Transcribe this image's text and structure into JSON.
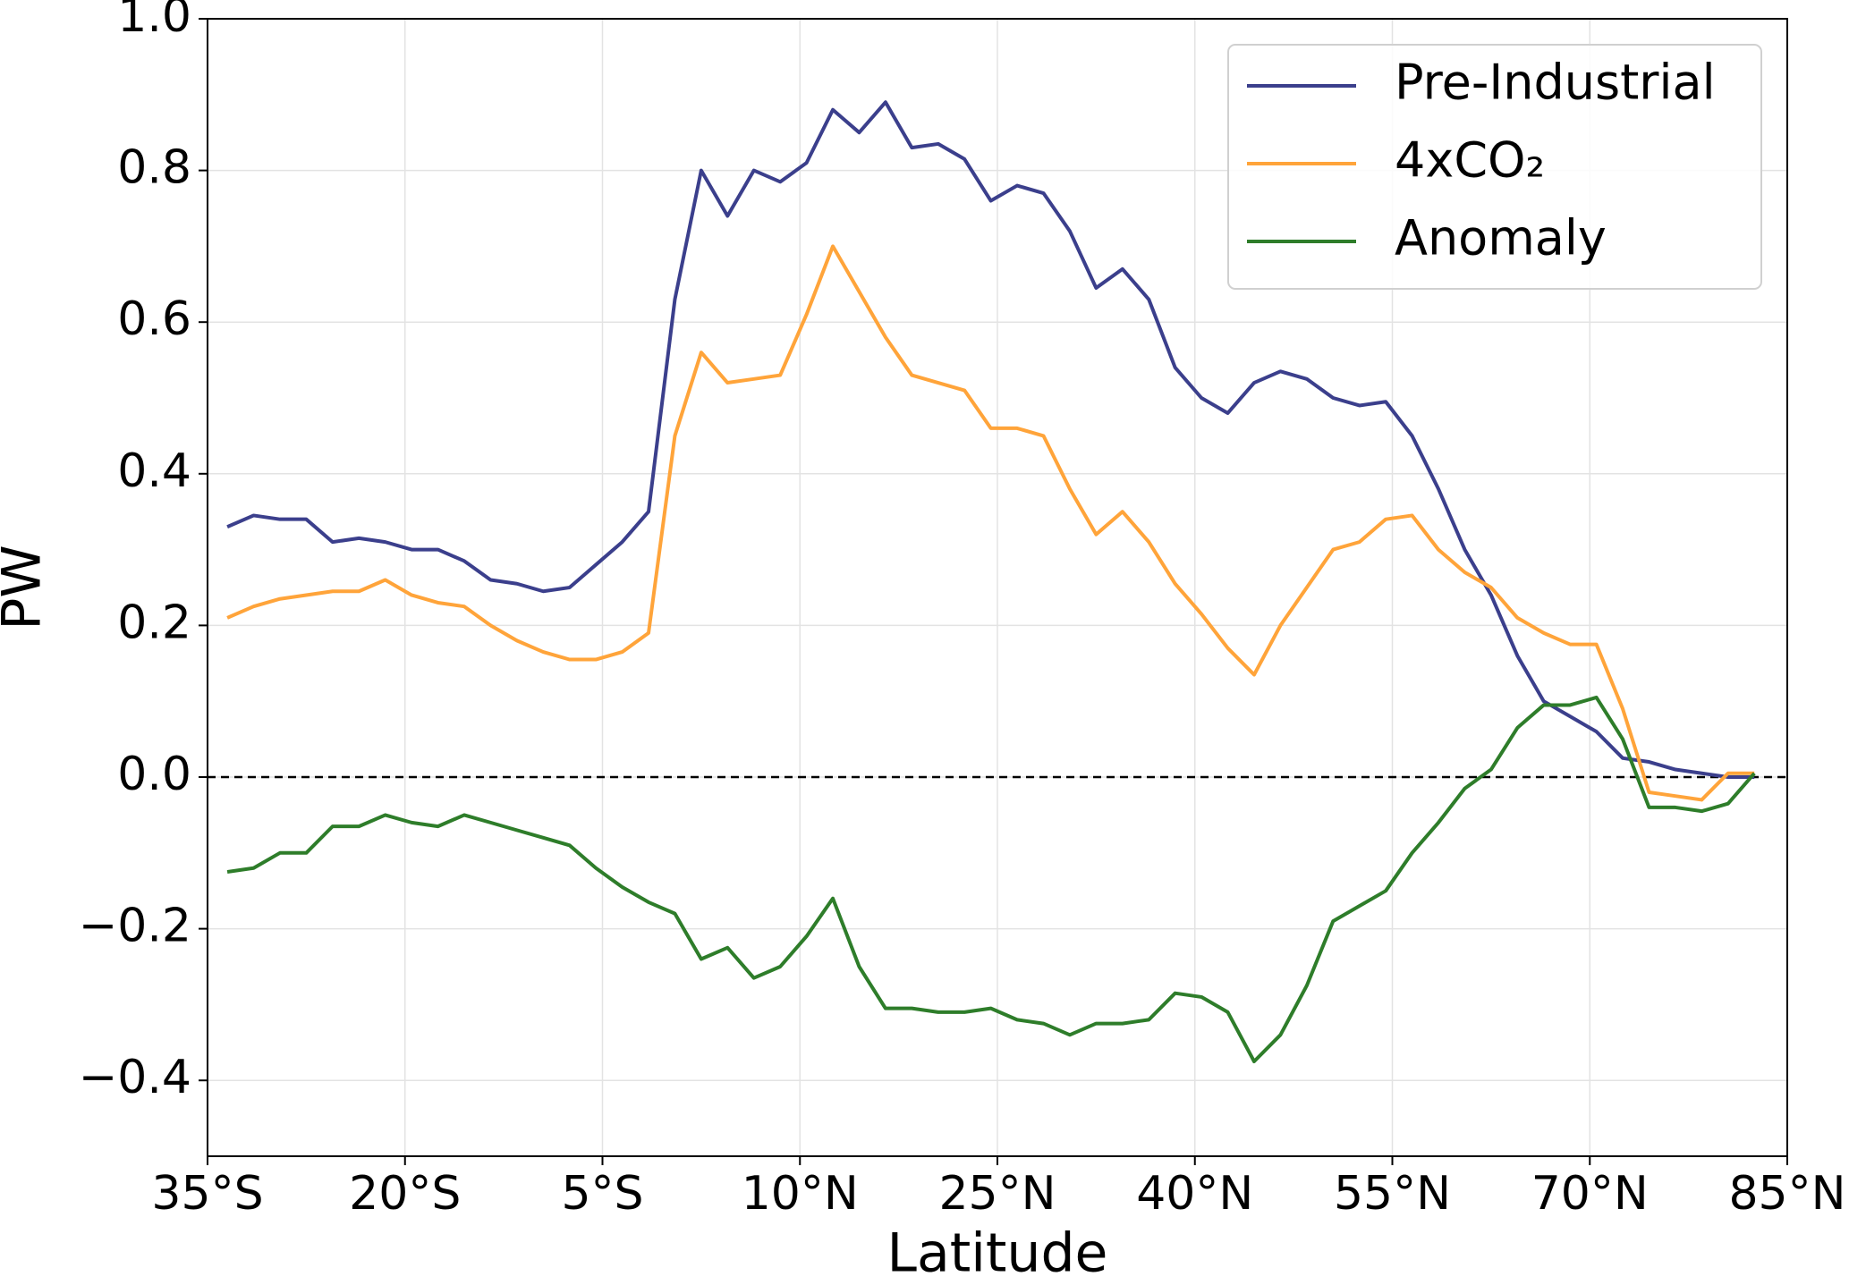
{
  "chart_data": {
    "type": "line",
    "xlabel": "Latitude",
    "ylabel": "PW",
    "x": [
      -33.5,
      -31.5,
      -29.5,
      -27.5,
      -25.5,
      -23.5,
      -21.5,
      -19.5,
      -17.5,
      -15.5,
      -13.5,
      -11.5,
      -9.5,
      -7.5,
      -5.5,
      -3.5,
      -1.5,
      0.5,
      2.5,
      4.5,
      6.5,
      8.5,
      10.5,
      12.5,
      14.5,
      16.5,
      18.5,
      20.5,
      22.5,
      24.5,
      26.5,
      28.5,
      30.5,
      32.5,
      34.5,
      36.5,
      38.5,
      40.5,
      42.5,
      44.5,
      46.5,
      48.5,
      50.5,
      52.5,
      54.5,
      56.5,
      58.5,
      60.5,
      62.5,
      64.5,
      66.5,
      68.5,
      70.5,
      72.5,
      74.5,
      76.5,
      78.5,
      80.5,
      82.5
    ],
    "series": [
      {
        "name": "Pre-Industrial",
        "color": "#3b3f8c",
        "values": [
          0.33,
          0.345,
          0.34,
          0.34,
          0.31,
          0.315,
          0.31,
          0.3,
          0.3,
          0.285,
          0.26,
          0.255,
          0.245,
          0.25,
          0.28,
          0.31,
          0.35,
          0.63,
          0.8,
          0.74,
          0.8,
          0.785,
          0.81,
          0.88,
          0.85,
          0.89,
          0.83,
          0.835,
          0.815,
          0.76,
          0.78,
          0.77,
          0.72,
          0.645,
          0.67,
          0.63,
          0.54,
          0.5,
          0.48,
          0.52,
          0.535,
          0.525,
          0.5,
          0.49,
          0.495,
          0.45,
          0.38,
          0.3,
          0.24,
          0.16,
          0.1,
          0.08,
          0.06,
          0.025,
          0.02,
          0.01,
          0.005,
          0.0,
          0.0
        ]
      },
      {
        "name": "4xCO₂",
        "color": "#ffa43a",
        "values": [
          0.21,
          0.225,
          0.235,
          0.24,
          0.245,
          0.245,
          0.26,
          0.24,
          0.23,
          0.225,
          0.2,
          0.18,
          0.165,
          0.155,
          0.155,
          0.165,
          0.19,
          0.45,
          0.56,
          0.52,
          0.525,
          0.53,
          0.61,
          0.7,
          0.64,
          0.58,
          0.53,
          0.52,
          0.51,
          0.46,
          0.46,
          0.45,
          0.38,
          0.32,
          0.35,
          0.31,
          0.255,
          0.215,
          0.17,
          0.135,
          0.2,
          0.25,
          0.3,
          0.31,
          0.34,
          0.345,
          0.3,
          0.27,
          0.25,
          0.21,
          0.19,
          0.175,
          0.175,
          0.09,
          -0.02,
          -0.025,
          -0.03,
          0.005,
          0.005
        ]
      },
      {
        "name": "Anomaly",
        "color": "#2e7d2a",
        "values": [
          -0.125,
          -0.12,
          -0.1,
          -0.1,
          -0.065,
          -0.065,
          -0.05,
          -0.06,
          -0.065,
          -0.05,
          -0.06,
          -0.07,
          -0.08,
          -0.09,
          -0.12,
          -0.145,
          -0.165,
          -0.18,
          -0.24,
          -0.225,
          -0.265,
          -0.25,
          -0.21,
          -0.16,
          -0.25,
          -0.305,
          -0.305,
          -0.31,
          -0.31,
          -0.305,
          -0.32,
          -0.325,
          -0.34,
          -0.325,
          -0.325,
          -0.32,
          -0.285,
          -0.29,
          -0.31,
          -0.375,
          -0.34,
          -0.275,
          -0.19,
          -0.17,
          -0.15,
          -0.1,
          -0.06,
          -0.015,
          0.01,
          0.065,
          0.095,
          0.095,
          0.105,
          0.05,
          -0.04,
          -0.04,
          -0.045,
          -0.035,
          0.005
        ]
      }
    ],
    "xlim": [
      -35,
      85
    ],
    "xticks": [
      {
        "value": -35,
        "label": "35°S"
      },
      {
        "value": -20,
        "label": "20°S"
      },
      {
        "value": -5,
        "label": "5°S"
      },
      {
        "value": 10,
        "label": "10°N"
      },
      {
        "value": 25,
        "label": "25°N"
      },
      {
        "value": 40,
        "label": "40°N"
      },
      {
        "value": 55,
        "label": "55°N"
      },
      {
        "value": 70,
        "label": "70°N"
      },
      {
        "value": 85,
        "label": "85°N"
      }
    ],
    "ylim": [
      -0.5,
      1.0
    ],
    "yticks": [
      {
        "value": -0.4,
        "label": "−0.4"
      },
      {
        "value": -0.2,
        "label": "−0.2"
      },
      {
        "value": 0,
        "label": "0.0"
      },
      0.2,
      0.4,
      0.6,
      0.8,
      {
        "value": 1,
        "label": "1.0"
      }
    ],
    "hline": 0,
    "grid": true,
    "legend": "upper right"
  }
}
